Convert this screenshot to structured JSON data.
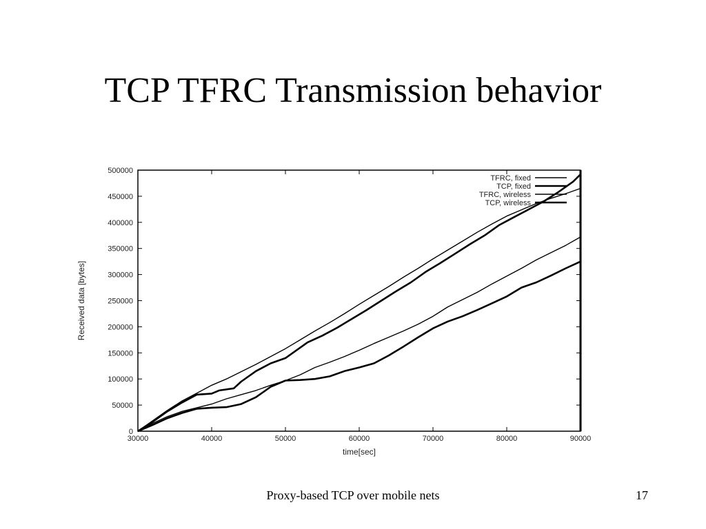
{
  "slide": {
    "title": "TCP TFRC Transmission behavior",
    "footer": "Proxy-based TCP over mobile nets",
    "page_number": "17"
  },
  "chart_data": {
    "type": "line",
    "title": "",
    "xlabel": "time[sec]",
    "ylabel": "Received data [bytes]",
    "xlim": [
      30000,
      90000
    ],
    "ylim": [
      0,
      500000
    ],
    "xticks": [
      30000,
      40000,
      50000,
      60000,
      70000,
      80000,
      90000
    ],
    "yticks": [
      0,
      50000,
      100000,
      150000,
      200000,
      250000,
      300000,
      350000,
      400000,
      450000,
      500000
    ],
    "grid": false,
    "legend_position": "top-right",
    "colors": {
      "line": "#000000",
      "frame": "#000000",
      "text": "#222222"
    },
    "series": [
      {
        "name": "TFRC, fixed",
        "style": "thin",
        "points": [
          [
            30000,
            0
          ],
          [
            32000,
            20000
          ],
          [
            34000,
            40000
          ],
          [
            36000,
            58000
          ],
          [
            38000,
            73000
          ],
          [
            40000,
            88000
          ],
          [
            42000,
            100000
          ],
          [
            44000,
            114000
          ],
          [
            46000,
            128000
          ],
          [
            48000,
            143000
          ],
          [
            50000,
            158000
          ],
          [
            52000,
            175000
          ],
          [
            54000,
            192000
          ],
          [
            56000,
            208000
          ],
          [
            58000,
            225000
          ],
          [
            60000,
            243000
          ],
          [
            62000,
            260000
          ],
          [
            64000,
            277000
          ],
          [
            66000,
            295000
          ],
          [
            68000,
            312000
          ],
          [
            70000,
            330000
          ],
          [
            72000,
            347000
          ],
          [
            74000,
            364000
          ],
          [
            76000,
            381000
          ],
          [
            78000,
            397000
          ],
          [
            80000,
            412000
          ],
          [
            82000,
            424000
          ],
          [
            84000,
            436000
          ],
          [
            86000,
            446000
          ],
          [
            88000,
            455000
          ],
          [
            90000,
            465000
          ]
        ]
      },
      {
        "name": "TCP, fixed",
        "style": "thick",
        "points": [
          [
            30000,
            0
          ],
          [
            32000,
            18000
          ],
          [
            34000,
            38000
          ],
          [
            36000,
            55000
          ],
          [
            38000,
            70000
          ],
          [
            40000,
            72000
          ],
          [
            41000,
            78000
          ],
          [
            43000,
            82000
          ],
          [
            44000,
            95000
          ],
          [
            46000,
            115000
          ],
          [
            48000,
            130000
          ],
          [
            50000,
            140000
          ],
          [
            51000,
            150000
          ],
          [
            53000,
            170000
          ],
          [
            55000,
            183000
          ],
          [
            57000,
            198000
          ],
          [
            59000,
            215000
          ],
          [
            61000,
            232000
          ],
          [
            63000,
            250000
          ],
          [
            65000,
            268000
          ],
          [
            67000,
            285000
          ],
          [
            69000,
            305000
          ],
          [
            71000,
            322000
          ],
          [
            73000,
            340000
          ],
          [
            75000,
            358000
          ],
          [
            77000,
            375000
          ],
          [
            79000,
            395000
          ],
          [
            81000,
            410000
          ],
          [
            83000,
            425000
          ],
          [
            85000,
            440000
          ],
          [
            87000,
            458000
          ],
          [
            89000,
            478000
          ],
          [
            90000,
            492000
          ]
        ]
      },
      {
        "name": "TFRC, wireless",
        "style": "thin",
        "points": [
          [
            30000,
            0
          ],
          [
            32000,
            15000
          ],
          [
            34000,
            28000
          ],
          [
            36000,
            38000
          ],
          [
            38000,
            45000
          ],
          [
            40000,
            52000
          ],
          [
            42000,
            62000
          ],
          [
            44000,
            70000
          ],
          [
            46000,
            78000
          ],
          [
            48000,
            88000
          ],
          [
            50000,
            97000
          ],
          [
            52000,
            108000
          ],
          [
            54000,
            122000
          ],
          [
            56000,
            132000
          ],
          [
            58000,
            143000
          ],
          [
            60000,
            155000
          ],
          [
            62000,
            168000
          ],
          [
            64000,
            180000
          ],
          [
            66000,
            192000
          ],
          [
            68000,
            205000
          ],
          [
            70000,
            220000
          ],
          [
            72000,
            238000
          ],
          [
            74000,
            252000
          ],
          [
            76000,
            266000
          ],
          [
            78000,
            282000
          ],
          [
            80000,
            297000
          ],
          [
            82000,
            312000
          ],
          [
            84000,
            328000
          ],
          [
            86000,
            342000
          ],
          [
            88000,
            356000
          ],
          [
            90000,
            372000
          ]
        ]
      },
      {
        "name": "TCP, wireless",
        "style": "thick",
        "points": [
          [
            30000,
            0
          ],
          [
            32000,
            12000
          ],
          [
            34000,
            25000
          ],
          [
            36000,
            35000
          ],
          [
            38000,
            43000
          ],
          [
            40000,
            45000
          ],
          [
            42000,
            46000
          ],
          [
            44000,
            52000
          ],
          [
            46000,
            65000
          ],
          [
            48000,
            85000
          ],
          [
            50000,
            97000
          ],
          [
            52000,
            98000
          ],
          [
            54000,
            100000
          ],
          [
            56000,
            105000
          ],
          [
            58000,
            115000
          ],
          [
            60000,
            122000
          ],
          [
            62000,
            130000
          ],
          [
            64000,
            145000
          ],
          [
            66000,
            162000
          ],
          [
            68000,
            180000
          ],
          [
            70000,
            197000
          ],
          [
            72000,
            210000
          ],
          [
            74000,
            220000
          ],
          [
            76000,
            232000
          ],
          [
            78000,
            245000
          ],
          [
            80000,
            258000
          ],
          [
            82000,
            275000
          ],
          [
            84000,
            285000
          ],
          [
            86000,
            298000
          ],
          [
            88000,
            312000
          ],
          [
            90000,
            325000
          ]
        ]
      }
    ]
  }
}
